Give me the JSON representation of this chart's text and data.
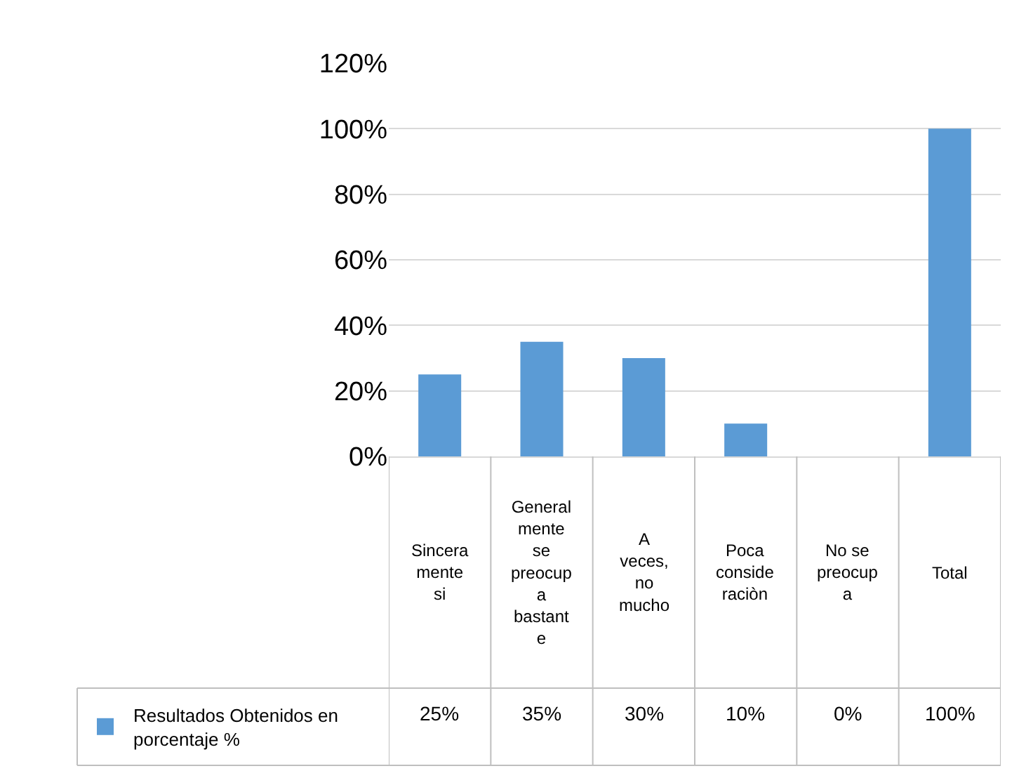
{
  "chart_data": {
    "type": "bar",
    "categories": [
      "Sinceramente si",
      "Generalmente se preocupa bastante",
      "A veces, no mucho",
      "Poca consideraciòn",
      "No se preocupa",
      "Total"
    ],
    "series": [
      {
        "name": "Resultados Obtenidos en porcentaje    %",
        "color": "#5b9bd5",
        "values": [
          25,
          35,
          30,
          10,
          0,
          100
        ],
        "value_labels": [
          "25%",
          "35%",
          "30%",
          "10%",
          "0%",
          "100%"
        ]
      }
    ],
    "ylim": [
      0,
      120
    ],
    "yticks": [
      {
        "value": 0,
        "label": "0%"
      },
      {
        "value": 20,
        "label": "20%"
      },
      {
        "value": 40,
        "label": "40%"
      },
      {
        "value": 60,
        "label": "60%"
      },
      {
        "value": 80,
        "label": "80%"
      },
      {
        "value": 100,
        "label": "100%"
      },
      {
        "value": 120,
        "label": "120%"
      }
    ],
    "grid": "y",
    "legend": "bottom left"
  }
}
